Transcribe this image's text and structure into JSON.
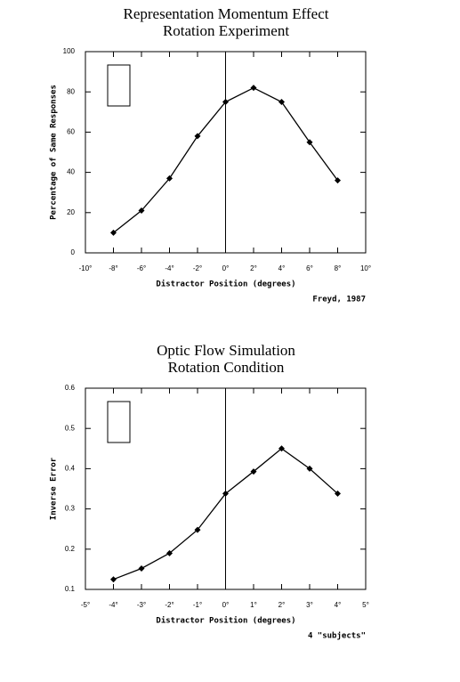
{
  "chart_data": [
    {
      "type": "line",
      "title": "Representation Momentum Effect",
      "subtitle": "Rotation Experiment",
      "x_label": "Distractor Position (degrees)",
      "y_label": "Percentage of Same Responses",
      "note": "Freyd, 1987",
      "x": [
        -8,
        -6,
        -4,
        -2,
        0,
        2,
        4,
        6,
        8
      ],
      "series": [
        {
          "color": "#000000",
          "values": [
            10,
            21,
            37,
            58,
            75,
            82,
            75,
            55,
            36
          ]
        }
      ],
      "xlim": [
        -10,
        10
      ],
      "xticks": [
        {
          "value": -10,
          "label": "-10°"
        },
        {
          "value": -8,
          "label": "-8°"
        },
        {
          "value": -6,
          "label": "-6°"
        },
        {
          "value": -4,
          "label": "-4°"
        },
        {
          "value": -2,
          "label": "-2°"
        },
        {
          "value": 0,
          "label": "0°"
        },
        {
          "value": 2,
          "label": "2°"
        },
        {
          "value": 4,
          "label": "4°"
        },
        {
          "value": 6,
          "label": "6°"
        },
        {
          "value": 8,
          "label": "8°"
        },
        {
          "value": 10,
          "label": "10°"
        }
      ],
      "ylim": [
        0,
        100
      ],
      "yticks": [
        0,
        20,
        40,
        60,
        80,
        100
      ],
      "grid": false
    },
    {
      "type": "line",
      "title": "Optic Flow Simulation",
      "subtitle": "Rotation Condition",
      "x_label": "Distractor Position (degrees)",
      "y_label": "Inverse Error",
      "note": "4 \"subjects\"",
      "x": [
        -4,
        -3,
        -2,
        -1,
        0,
        1,
        2,
        3,
        4
      ],
      "series": [
        {
          "color": "#000000",
          "values": [
            0.125,
            0.152,
            0.19,
            0.248,
            0.338,
            0.393,
            0.45,
            0.4,
            0.338
          ]
        }
      ],
      "xlim": [
        -5,
        5
      ],
      "xticks": [
        {
          "value": -5,
          "label": "-5°"
        },
        {
          "value": -4,
          "label": "-4°"
        },
        {
          "value": -3,
          "label": "-3°"
        },
        {
          "value": -2,
          "label": "-2°"
        },
        {
          "value": -1,
          "label": "-1°"
        },
        {
          "value": 0,
          "label": "0°"
        },
        {
          "value": 1,
          "label": "1°"
        },
        {
          "value": 2,
          "label": "2°"
        },
        {
          "value": 3,
          "label": "3°"
        },
        {
          "value": 4,
          "label": "4°"
        },
        {
          "value": 5,
          "label": "5°"
        }
      ],
      "ylim": [
        0.1,
        0.6
      ],
      "yticks": [
        0.1,
        0.2,
        0.3,
        0.4,
        0.5,
        0.6
      ],
      "grid": false
    }
  ]
}
